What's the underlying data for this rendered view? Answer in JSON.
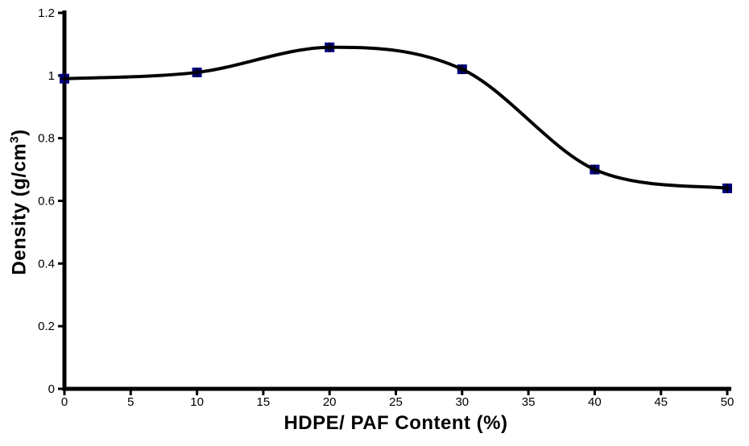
{
  "chart_data": {
    "type": "line",
    "title": "",
    "xlabel": "HDPE/ PAF Content (%)",
    "ylabel": "Density (g/cm³)",
    "ylabel_parts": {
      "base": "Density (g/cm",
      "sup": "3",
      "close": ")"
    },
    "x": [
      0,
      10,
      20,
      30,
      40,
      50
    ],
    "y": [
      0.99,
      1.01,
      1.09,
      1.02,
      0.7,
      0.64
    ],
    "series_name": "Density",
    "xlim": [
      0,
      50
    ],
    "ylim": [
      0,
      1.2
    ],
    "x_ticks": [
      0,
      5,
      10,
      15,
      20,
      25,
      30,
      35,
      40,
      45,
      50
    ],
    "x_tick_labels": [
      "0",
      "5",
      "10",
      "15",
      "20",
      "25",
      "30",
      "35",
      "40",
      "45",
      "50"
    ],
    "y_ticks": [
      0,
      0.2,
      0.4,
      0.6,
      0.8,
      1,
      1.2
    ],
    "y_tick_labels": [
      "0",
      "0.2",
      "0.4",
      "0.6",
      "0.8",
      "1",
      "1.2"
    ],
    "grid": false,
    "legend": "none",
    "smooth": true,
    "marker": "square-with-cross",
    "colors": {
      "line": "#000000",
      "marker": "#000080",
      "axis": "#000000",
      "text": "#000000",
      "background": "#ffffff"
    }
  }
}
